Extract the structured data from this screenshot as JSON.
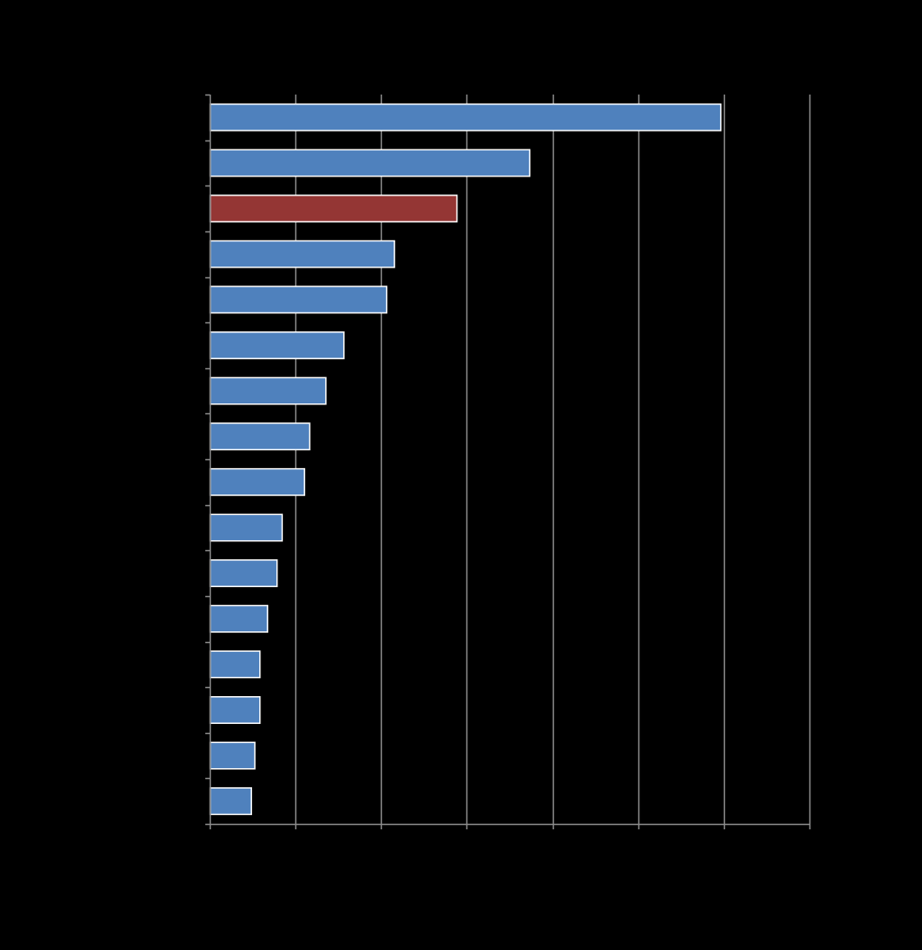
{
  "chart_data": {
    "type": "bar",
    "orientation": "horizontal",
    "title": "",
    "xlabel": "",
    "ylabel": "",
    "categories": [
      "",
      "",
      "",
      "",
      "",
      "",
      "",
      "",
      "",
      "",
      "",
      "",
      "",
      "",
      "",
      ""
    ],
    "values": [
      59.6,
      37.3,
      28.8,
      21.5,
      20.6,
      15.6,
      13.5,
      11.6,
      11.0,
      8.4,
      7.8,
      6.7,
      5.8,
      5.8,
      5.2,
      4.8
    ],
    "highlight_index": 2,
    "xlim": [
      0,
      70
    ],
    "grid": true,
    "legend": "none",
    "colors": {
      "bar": "#4f81bd",
      "highlight": "#943634",
      "bar_outline": "#ffffff",
      "grid": "#8c8c8c",
      "axis": "#8c8c8c",
      "background": "#000000"
    }
  }
}
